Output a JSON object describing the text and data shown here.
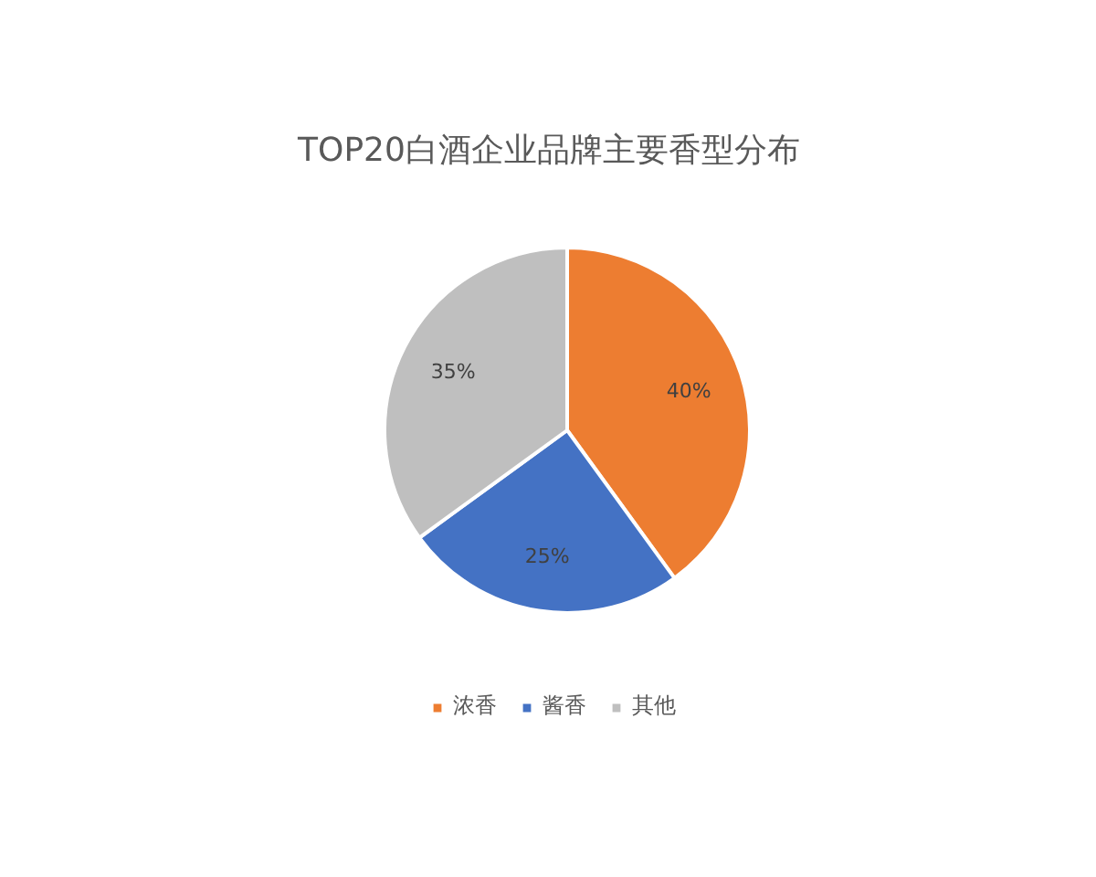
{
  "chart_data": {
    "type": "pie",
    "title": "TOP20白酒企业品牌主要香型分布",
    "categories": [
      "浓香",
      "酱香",
      "其他"
    ],
    "values": [
      40,
      25,
      35
    ],
    "value_labels": [
      "40%",
      "25%",
      "35%"
    ],
    "colors": [
      "#ed7d31",
      "#4472c4",
      "#bfbfbf"
    ],
    "legend": "bottom"
  }
}
